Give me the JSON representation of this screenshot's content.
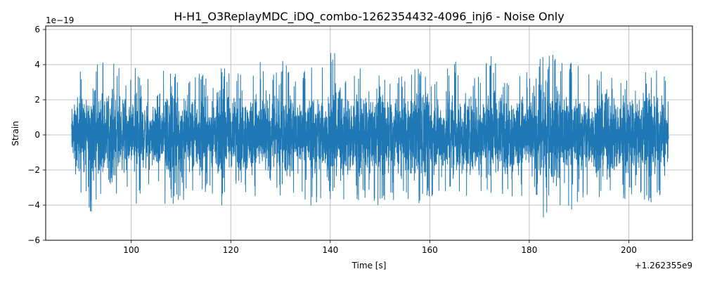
{
  "chart_data": {
    "type": "line",
    "title": "H-H1_O3ReplayMDC_iDQ_combo-1262354432-4096_inj6 - Noise Only",
    "xlabel": "Time [s]",
    "ylabel": "Strain",
    "x_offset_label": "+1.262355e9",
    "y_exponent_label": "1e−19",
    "xlim": [
      82.8,
      212.8
    ],
    "ylim": [
      -6,
      6.2
    ],
    "x_ticks": [
      100,
      120,
      140,
      160,
      180,
      200
    ],
    "x_tick_labels": [
      "100",
      "120",
      "140",
      "160",
      "180",
      "200"
    ],
    "y_ticks": [
      -6,
      -4,
      -2,
      0,
      2,
      4,
      6
    ],
    "y_tick_labels": [
      "−6",
      "−4",
      "−2",
      "0",
      "2",
      "4",
      "6"
    ],
    "grid": true,
    "line_color": "#1f77b4",
    "series": [
      {
        "x_start": 88.0,
        "x_end": 208.0,
        "envelope_x": [
          88,
          89,
          90,
          91,
          92,
          93,
          94,
          95,
          96,
          98,
          100,
          101,
          102,
          104,
          106,
          107,
          110,
          114,
          117,
          118,
          120,
          123,
          126,
          129,
          130,
          133,
          136,
          139,
          140,
          143,
          146,
          148,
          150,
          152,
          155,
          158,
          160,
          162,
          165,
          168,
          170,
          172,
          175,
          178,
          180,
          181,
          182,
          185,
          188,
          190,
          193,
          196,
          199,
          202,
          204,
          206,
          207,
          208
        ],
        "envelope_max": [
          2.5,
          3.8,
          3.7,
          2.9,
          3.2,
          4.0,
          4.7,
          3.3,
          4.8,
          3.6,
          3.3,
          4.1,
          3.1,
          3.3,
          3.8,
          4.7,
          3.4,
          3.5,
          3.2,
          4.1,
          3.4,
          4.2,
          4.2,
          3.4,
          4.4,
          3.3,
          4.1,
          4.0,
          5.2,
          3.5,
          4.0,
          3.3,
          3.4,
          3.3,
          3.7,
          4.0,
          3.3,
          3.3,
          4.4,
          3.3,
          3.6,
          4.7,
          3.2,
          4.2,
          3.4,
          5.6,
          4.4,
          4.6,
          4.3,
          4.2,
          3.3,
          4.0,
          3.2,
          3.5,
          3.6,
          4.3,
          4.3,
          1.8
        ],
        "envelope_min": [
          -2.5,
          -2.9,
          -4.1,
          -3.7,
          -5.4,
          -3.9,
          -2.8,
          -3.9,
          -4.0,
          -3.3,
          -3.0,
          -4.0,
          -3.5,
          -2.7,
          -3.2,
          -4.6,
          -3.8,
          -3.6,
          -3.3,
          -4.2,
          -3.0,
          -3.4,
          -3.7,
          -3.0,
          -3.7,
          -3.6,
          -4.1,
          -4.0,
          -3.2,
          -4.1,
          -3.9,
          -3.7,
          -4.5,
          -3.7,
          -4.1,
          -3.9,
          -3.6,
          -3.6,
          -3.5,
          -4.0,
          -3.8,
          -3.8,
          -3.8,
          -3.5,
          -3.8,
          -3.0,
          -5.3,
          -4.1,
          -4.8,
          -3.7,
          -3.9,
          -3.4,
          -3.9,
          -3.3,
          -4.5,
          -3.6,
          -3.1,
          -2.0
        ]
      }
    ]
  }
}
